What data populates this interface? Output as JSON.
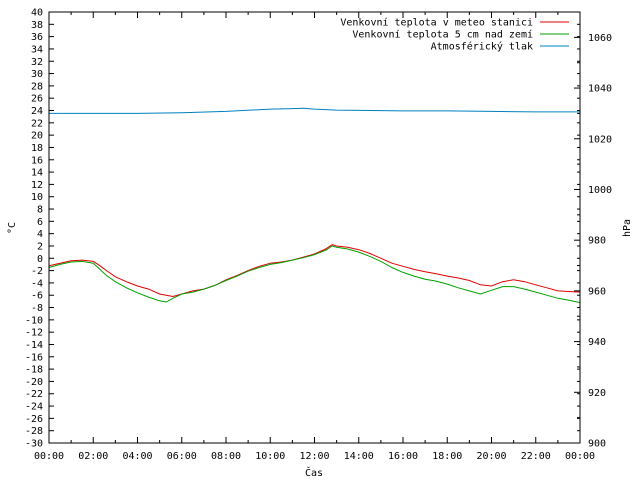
{
  "chart_data": {
    "type": "line",
    "xlabel": "Čas",
    "ylabel": "°C",
    "y2label": "hPa",
    "xlim": [
      0,
      24
    ],
    "ylim": [
      -30,
      40
    ],
    "y2lim": [
      900,
      1070
    ],
    "x_tick_labels": [
      "00:00",
      "02:00",
      "04:00",
      "06:00",
      "08:00",
      "10:00",
      "12:00",
      "14:00",
      "16:00",
      "18:00",
      "20:00",
      "22:00",
      "00:00"
    ],
    "legend_position": "top-right",
    "grid": false,
    "series": [
      {
        "name": "Venkovní teplota v meteo stanici",
        "color": "#e00000",
        "axis": "left",
        "x": [
          0,
          0.5,
          1,
          1.5,
          2,
          2.3,
          2.6,
          3,
          3.5,
          4,
          4.5,
          5,
          5.3,
          5.6,
          6,
          6.5,
          7,
          7.5,
          8,
          8.5,
          9,
          9.5,
          10,
          10.5,
          11,
          11.5,
          12,
          12.5,
          12.8,
          13,
          13.5,
          14,
          14.5,
          15,
          15.5,
          16,
          16.5,
          17,
          17.5,
          18,
          18.5,
          19,
          19.5,
          20,
          20.5,
          21,
          21.5,
          22,
          22.5,
          23,
          23.5,
          24
        ],
        "values": [
          -1.2,
          -0.8,
          -0.4,
          -0.3,
          -0.5,
          -1.2,
          -2.0,
          -3.0,
          -3.8,
          -4.5,
          -5.0,
          -5.8,
          -6.0,
          -6.2,
          -5.8,
          -5.3,
          -5.0,
          -4.4,
          -3.5,
          -2.8,
          -2.0,
          -1.3,
          -0.8,
          -0.6,
          -0.3,
          0.2,
          0.7,
          1.5,
          2.2,
          2.0,
          1.8,
          1.4,
          0.8,
          0.0,
          -0.8,
          -1.3,
          -1.8,
          -2.2,
          -2.5,
          -2.9,
          -3.2,
          -3.6,
          -4.3,
          -4.5,
          -3.8,
          -3.5,
          -3.8,
          -4.3,
          -4.8,
          -5.3,
          -5.4,
          -5.5
        ]
      },
      {
        "name": "Venkovní teplota 5 cm nad zemí",
        "color": "#00a000",
        "axis": "left",
        "x": [
          0,
          0.5,
          1,
          1.5,
          2,
          2.3,
          2.6,
          3,
          3.5,
          4,
          4.5,
          5,
          5.3,
          5.6,
          6,
          6.5,
          7,
          7.5,
          8,
          8.5,
          9,
          9.5,
          10,
          10.5,
          11,
          11.5,
          12,
          12.5,
          12.8,
          13,
          13.5,
          14,
          14.5,
          15,
          15.5,
          16,
          16.5,
          17,
          17.5,
          18,
          18.5,
          19,
          19.5,
          20,
          20.5,
          21,
          21.5,
          22,
          22.5,
          23,
          23.5,
          24
        ],
        "values": [
          -1.5,
          -1.0,
          -0.6,
          -0.5,
          -0.8,
          -1.8,
          -2.8,
          -3.8,
          -4.8,
          -5.6,
          -6.3,
          -6.9,
          -7.1,
          -6.5,
          -5.8,
          -5.5,
          -5.0,
          -4.4,
          -3.6,
          -2.9,
          -2.1,
          -1.5,
          -1.0,
          -0.7,
          -0.3,
          0.1,
          0.6,
          1.3,
          2.0,
          1.8,
          1.5,
          1.0,
          0.3,
          -0.5,
          -1.5,
          -2.3,
          -2.9,
          -3.4,
          -3.7,
          -4.2,
          -4.8,
          -5.3,
          -5.8,
          -5.2,
          -4.6,
          -4.6,
          -5.0,
          -5.5,
          -6.0,
          -6.5,
          -6.8,
          -7.2
        ]
      },
      {
        "name": "Atmosférický tlak",
        "color": "#0080c0",
        "axis": "right",
        "x": [
          0,
          2,
          4,
          6,
          8,
          10,
          11,
          11.5,
          12,
          13,
          14,
          16,
          18,
          20,
          22,
          24
        ],
        "values": [
          1030.0,
          1030.0,
          1030.0,
          1030.3,
          1030.8,
          1031.7,
          1031.9,
          1032.0,
          1031.7,
          1031.3,
          1031.2,
          1031.0,
          1031.0,
          1030.8,
          1030.6,
          1030.6
        ]
      }
    ]
  }
}
